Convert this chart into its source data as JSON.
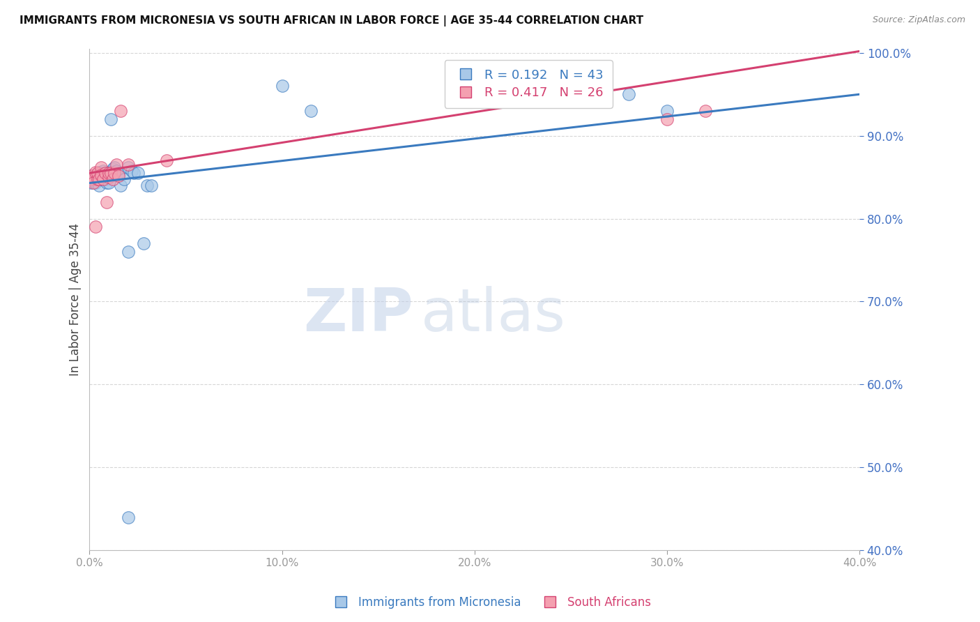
{
  "title": "IMMIGRANTS FROM MICRONESIA VS SOUTH AFRICAN IN LABOR FORCE | AGE 35-44 CORRELATION CHART",
  "source": "Source: ZipAtlas.com",
  "ylabel": "In Labor Force | Age 35-44",
  "legend_label_blue": "Immigrants from Micronesia",
  "legend_label_pink": "South Africans",
  "R_blue": 0.192,
  "N_blue": 43,
  "R_pink": 0.417,
  "N_pink": 26,
  "color_blue": "#a8c8e8",
  "color_pink": "#f4a0b0",
  "line_color_blue": "#3a7abf",
  "line_color_pink": "#d44070",
  "xmin": 0.0,
  "xmax": 0.4,
  "ymin": 0.4,
  "ymax": 1.005,
  "axis_color": "#4472c4",
  "watermark_zip": "ZIP",
  "watermark_atlas": "atlas",
  "blue_x": [
    0.001,
    0.001,
    0.002,
    0.002,
    0.003,
    0.003,
    0.003,
    0.004,
    0.004,
    0.005,
    0.005,
    0.005,
    0.006,
    0.006,
    0.007,
    0.007,
    0.007,
    0.008,
    0.008,
    0.009,
    0.009,
    0.01,
    0.01,
    0.011,
    0.012,
    0.013,
    0.014,
    0.015,
    0.016,
    0.018,
    0.02,
    0.022,
    0.023,
    0.025,
    0.03,
    0.032,
    0.1,
    0.115,
    0.28,
    0.3,
    0.02,
    0.028,
    0.02
  ],
  "blue_y": [
    0.843,
    0.852,
    0.85,
    0.845,
    0.852,
    0.848,
    0.843,
    0.85,
    0.853,
    0.856,
    0.848,
    0.84,
    0.855,
    0.848,
    0.85,
    0.853,
    0.858,
    0.848,
    0.855,
    0.848,
    0.843,
    0.843,
    0.853,
    0.92,
    0.86,
    0.862,
    0.858,
    0.855,
    0.84,
    0.848,
    0.862,
    0.858,
    0.855,
    0.855,
    0.84,
    0.84,
    0.96,
    0.93,
    0.95,
    0.93,
    0.76,
    0.77,
    0.44
  ],
  "pink_x": [
    0.001,
    0.001,
    0.002,
    0.002,
    0.003,
    0.004,
    0.004,
    0.005,
    0.006,
    0.006,
    0.007,
    0.008,
    0.009,
    0.01,
    0.01,
    0.011,
    0.012,
    0.013,
    0.014,
    0.015,
    0.016,
    0.02,
    0.04,
    0.3,
    0.32,
    0.003
  ],
  "pink_y": [
    0.852,
    0.848,
    0.85,
    0.843,
    0.856,
    0.848,
    0.855,
    0.848,
    0.862,
    0.853,
    0.848,
    0.855,
    0.82,
    0.85,
    0.855,
    0.855,
    0.848,
    0.855,
    0.865,
    0.852,
    0.93,
    0.865,
    0.87,
    0.92,
    0.93,
    0.79
  ]
}
